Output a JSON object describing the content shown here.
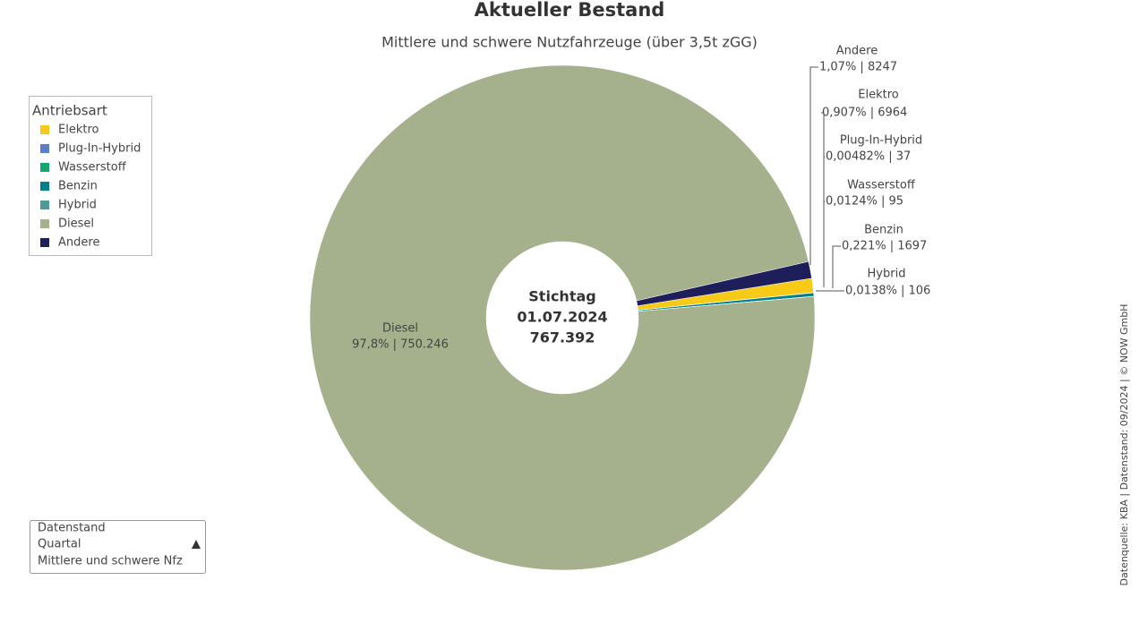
{
  "chart_data": {
    "type": "pie",
    "title": "Aktueller Bestand",
    "subtitle": "Mittlere und schwere Nutzfahrzeuge (über 3,5t zGG)",
    "legend_title": "Antriebsart",
    "categories": [
      "Elektro",
      "Plug-In-Hybrid",
      "Wasserstoff",
      "Benzin",
      "Hybrid",
      "Diesel",
      "Andere"
    ],
    "values": [
      6964,
      37,
      95,
      1697,
      106,
      750246,
      8247
    ],
    "value_labels": [
      "0,907% | 6964",
      "0,00482% | 37",
      "0,0124% | 95",
      "0,221% | 1697",
      "0,0138% | 106",
      "97,8% | 750.246",
      "1,07% | 8247"
    ],
    "colors": [
      "#f7ca18",
      "#5b7fc7",
      "#11a86e",
      "#00808a",
      "#4e9a96",
      "#a5b08c",
      "#1e1f5a"
    ],
    "center_text": [
      "Stichtag",
      "01.07.2024",
      "767.392"
    ],
    "source": "Datenquelle: KBA | Datenstand: 09/2024 | © NOW GmbH"
  },
  "filter": {
    "lines": [
      "Datenstand",
      "Quartal",
      "Mittlere und schwere Nfz"
    ]
  }
}
